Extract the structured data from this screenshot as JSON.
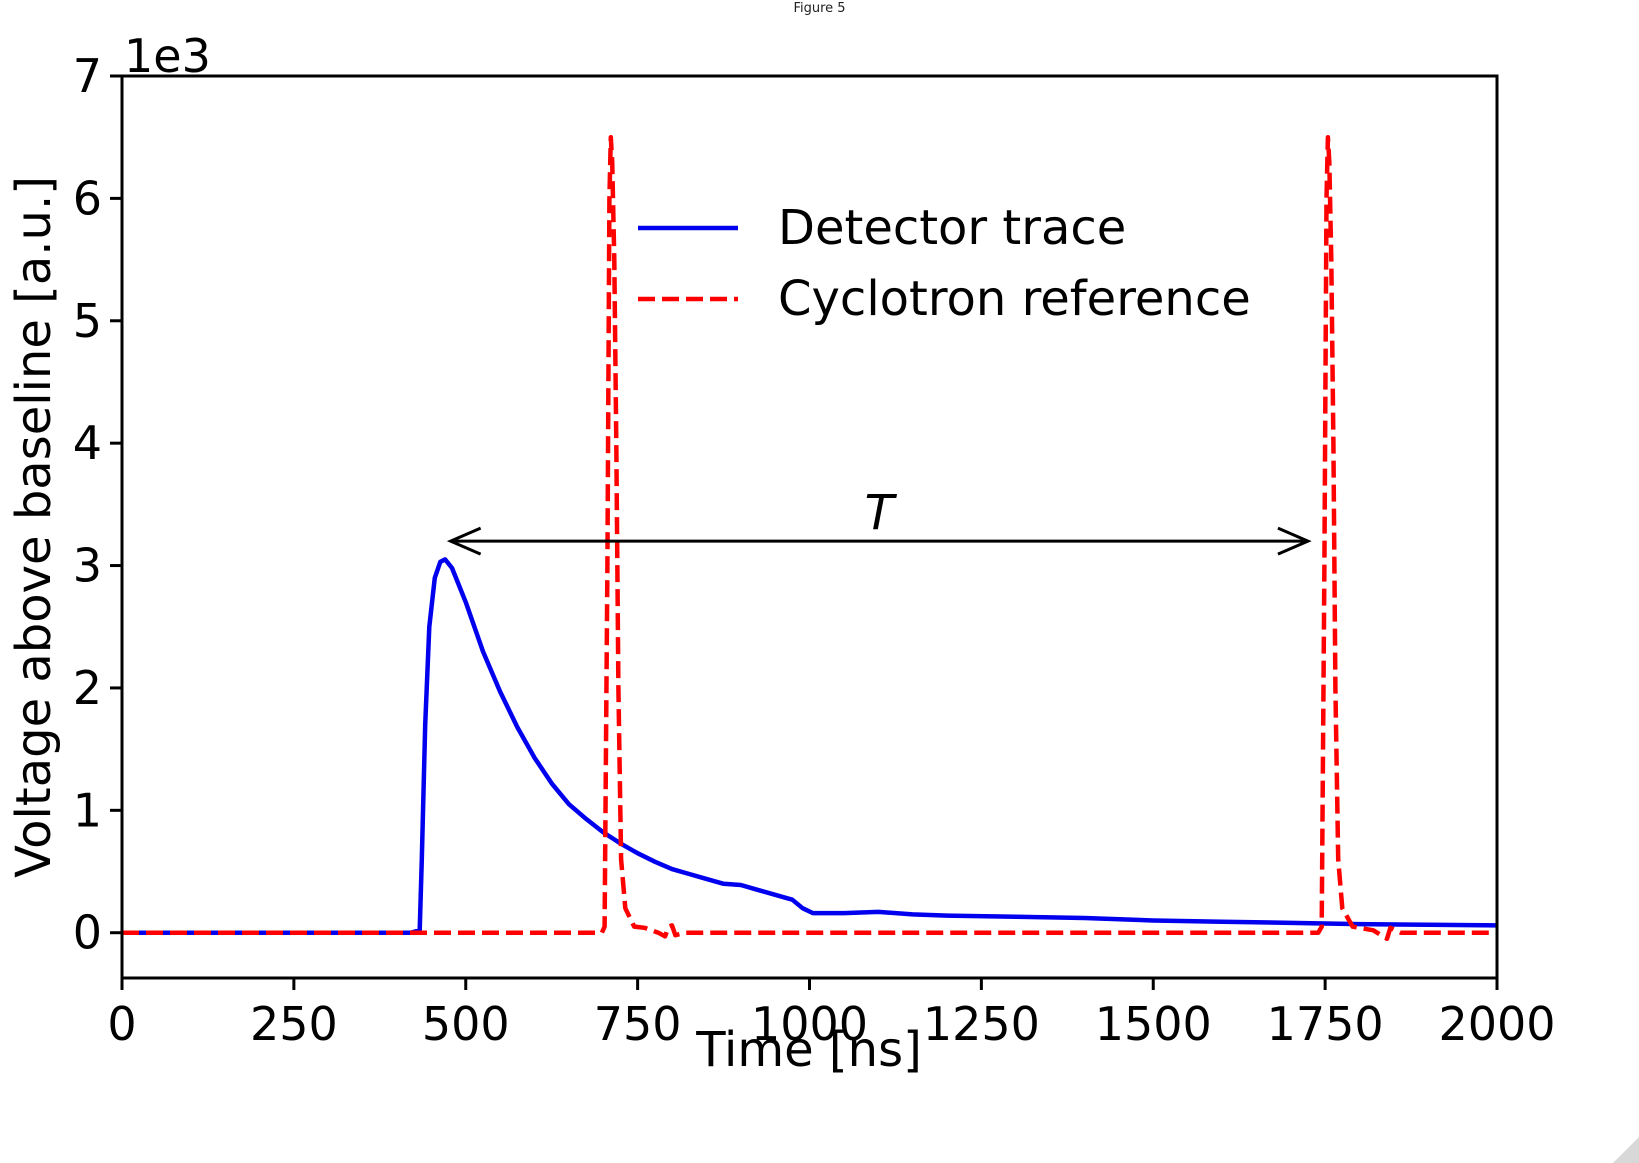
{
  "window": {
    "title": "Figure 5"
  },
  "chart_data": {
    "type": "line",
    "xlabel": "Time [ns]",
    "ylabel": "Voltage above baseline [a.u.]",
    "y_multiplier_label": "1e3",
    "xlim": [
      0,
      2000
    ],
    "ylim": [
      -0.37,
      7
    ],
    "x_ticks": [
      0,
      250,
      500,
      750,
      1000,
      1250,
      1500,
      1750,
      2000
    ],
    "x_tick_labels": [
      "0",
      "250",
      "500",
      "750",
      "1000",
      "1250",
      "1500",
      "1750",
      "2000"
    ],
    "y_ticks": [
      0,
      1,
      2,
      3,
      4,
      5,
      6,
      7
    ],
    "y_tick_labels": [
      "0",
      "1",
      "2",
      "3",
      "4",
      "5",
      "6",
      "7"
    ],
    "grid": false,
    "legend_position": "top-center",
    "series": [
      {
        "name": "Detector trace",
        "color": "#0000ee",
        "style": "solid",
        "points": [
          [
            0,
            0
          ],
          [
            420,
            0
          ],
          [
            433,
            0.02
          ],
          [
            436,
            0.6
          ],
          [
            441,
            1.7
          ],
          [
            447,
            2.5
          ],
          [
            455,
            2.9
          ],
          [
            463,
            3.03
          ],
          [
            470,
            3.05
          ],
          [
            480,
            2.98
          ],
          [
            500,
            2.7
          ],
          [
            525,
            2.3
          ],
          [
            550,
            1.97
          ],
          [
            575,
            1.68
          ],
          [
            600,
            1.43
          ],
          [
            625,
            1.22
          ],
          [
            650,
            1.05
          ],
          [
            675,
            0.93
          ],
          [
            700,
            0.82
          ],
          [
            725,
            0.73
          ],
          [
            750,
            0.65
          ],
          [
            775,
            0.58
          ],
          [
            800,
            0.52
          ],
          [
            825,
            0.48
          ],
          [
            850,
            0.44
          ],
          [
            875,
            0.4
          ],
          [
            900,
            0.39
          ],
          [
            925,
            0.35
          ],
          [
            950,
            0.31
          ],
          [
            975,
            0.27
          ],
          [
            990,
            0.2
          ],
          [
            1005,
            0.16
          ],
          [
            1050,
            0.16
          ],
          [
            1100,
            0.17
          ],
          [
            1150,
            0.15
          ],
          [
            1200,
            0.14
          ],
          [
            1300,
            0.13
          ],
          [
            1400,
            0.12
          ],
          [
            1500,
            0.1
          ],
          [
            1600,
            0.09
          ],
          [
            1700,
            0.08
          ],
          [
            1800,
            0.07
          ],
          [
            1900,
            0.065
          ],
          [
            2000,
            0.06
          ]
        ]
      },
      {
        "name": "Cyclotron reference",
        "color": "#ff0000",
        "style": "dashed",
        "points": [
          [
            0,
            0
          ],
          [
            698,
            0
          ],
          [
            702,
            0.05
          ],
          [
            706,
            3.0
          ],
          [
            709,
            6.0
          ],
          [
            711,
            6.5
          ],
          [
            713,
            6.3
          ],
          [
            716,
            5.5
          ],
          [
            719,
            4.0
          ],
          [
            722,
            2.0
          ],
          [
            726,
            0.6
          ],
          [
            732,
            0.2
          ],
          [
            745,
            0.05
          ],
          [
            760,
            0.04
          ],
          [
            780,
            0.0
          ],
          [
            790,
            -0.03
          ],
          [
            795,
            0.05
          ],
          [
            800,
            0.06
          ],
          [
            805,
            -0.02
          ],
          [
            820,
            0.0
          ],
          [
            1740,
            0.0
          ],
          [
            1745,
            0.05
          ],
          [
            1749,
            3.0
          ],
          [
            1752,
            6.0
          ],
          [
            1754,
            6.5
          ],
          [
            1756,
            6.3
          ],
          [
            1759,
            5.5
          ],
          [
            1762,
            4.0
          ],
          [
            1765,
            2.0
          ],
          [
            1769,
            0.6
          ],
          [
            1775,
            0.2
          ],
          [
            1790,
            0.05
          ],
          [
            1820,
            0.02
          ],
          [
            1840,
            -0.05
          ],
          [
            1845,
            0.04
          ],
          [
            1860,
            0.0
          ],
          [
            2000,
            0.0
          ]
        ]
      }
    ],
    "annotations": [
      {
        "text": "T",
        "type": "double-arrow",
        "x_start": 478,
        "x_end": 1725,
        "y": 3.2
      }
    ]
  }
}
